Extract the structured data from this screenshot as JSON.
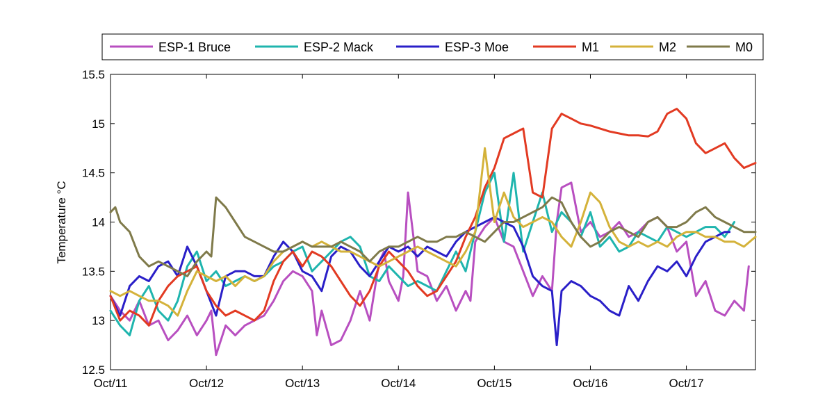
{
  "chart_data": {
    "type": "line",
    "title": "",
    "xlabel": "",
    "ylabel": "Temperature °C",
    "xlim": [
      0,
      6.72
    ],
    "ylim": [
      12.5,
      15.5
    ],
    "x_ticks": [
      {
        "value": 0,
        "label": "Oct/11"
      },
      {
        "value": 1,
        "label": "Oct/12"
      },
      {
        "value": 2,
        "label": "Oct/13"
      },
      {
        "value": 3,
        "label": "Oct/14"
      },
      {
        "value": 4,
        "label": "Oct/15"
      },
      {
        "value": 5,
        "label": "Oct/16"
      },
      {
        "value": 6,
        "label": "Oct/17"
      }
    ],
    "y_ticks": [
      12.5,
      13,
      13.5,
      14,
      14.5,
      15,
      15.5
    ],
    "y_tick_labels": [
      "12.5",
      "13",
      "13.5",
      "14",
      "14.5",
      "15",
      "15.5"
    ],
    "grid": false,
    "legend_position": "top",
    "series": [
      {
        "name": "ESP-1 Bruce",
        "color": "#B84FC0",
        "x": [
          0,
          0.1,
          0.2,
          0.3,
          0.4,
          0.5,
          0.6,
          0.7,
          0.8,
          0.9,
          1.0,
          1.05,
          1.1,
          1.2,
          1.3,
          1.4,
          1.5,
          1.6,
          1.7,
          1.8,
          1.9,
          2.0,
          2.1,
          2.15,
          2.2,
          2.3,
          2.4,
          2.5,
          2.6,
          2.7,
          2.8,
          2.85,
          2.9,
          3.0,
          3.05,
          3.1,
          3.2,
          3.3,
          3.4,
          3.5,
          3.6,
          3.7,
          3.75,
          3.8,
          3.9,
          4.0,
          4.1,
          4.2,
          4.3,
          4.4,
          4.5,
          4.6,
          4.65,
          4.7,
          4.8,
          4.9,
          5.0,
          5.1,
          5.2,
          5.3,
          5.4,
          5.5,
          5.6,
          5.7,
          5.8,
          5.9,
          6.0,
          6.1,
          6.2,
          6.3,
          6.4,
          6.5,
          6.6,
          6.65
        ],
        "y": [
          13.25,
          13.1,
          13.0,
          13.2,
          12.95,
          13.0,
          12.8,
          12.9,
          13.05,
          12.85,
          13.0,
          13.1,
          12.65,
          12.95,
          12.85,
          12.95,
          13.0,
          13.05,
          13.2,
          13.4,
          13.5,
          13.45,
          13.3,
          12.85,
          13.1,
          12.75,
          12.8,
          13.0,
          13.3,
          13.0,
          13.6,
          13.7,
          13.4,
          13.2,
          13.45,
          14.3,
          13.5,
          13.45,
          13.2,
          13.35,
          13.1,
          13.3,
          13.2,
          13.8,
          13.95,
          14.05,
          13.8,
          13.75,
          13.5,
          13.25,
          13.45,
          13.3,
          14.0,
          14.35,
          14.4,
          13.9,
          14.0,
          13.85,
          13.9,
          14.0,
          13.85,
          13.9,
          14.0,
          14.05,
          13.95,
          13.7,
          13.8,
          13.25,
          13.4,
          13.1,
          13.05,
          13.2,
          13.1,
          13.55
        ]
      },
      {
        "name": "ESP-2 Mack",
        "color": "#1FB5AE",
        "x": [
          0,
          0.1,
          0.2,
          0.3,
          0.4,
          0.5,
          0.6,
          0.7,
          0.8,
          0.9,
          1.0,
          1.1,
          1.2,
          1.3,
          1.4,
          1.5,
          1.6,
          1.7,
          1.8,
          1.9,
          2.0,
          2.1,
          2.2,
          2.3,
          2.4,
          2.5,
          2.6,
          2.7,
          2.8,
          2.9,
          3.0,
          3.1,
          3.2,
          3.3,
          3.4,
          3.5,
          3.6,
          3.7,
          3.8,
          3.9,
          4.0,
          4.1,
          4.2,
          4.3,
          4.4,
          4.5,
          4.6,
          4.7,
          4.8,
          4.9,
          5.0,
          5.1,
          5.2,
          5.3,
          5.4,
          5.5,
          5.6,
          5.7,
          5.8,
          5.9,
          6.0,
          6.1,
          6.2,
          6.3,
          6.4,
          6.5
        ],
        "y": [
          13.1,
          12.95,
          12.85,
          13.2,
          13.35,
          13.1,
          13.0,
          13.2,
          13.55,
          13.7,
          13.4,
          13.5,
          13.35,
          13.4,
          13.45,
          13.4,
          13.45,
          13.55,
          13.6,
          13.7,
          13.75,
          13.5,
          13.6,
          13.7,
          13.8,
          13.85,
          13.75,
          13.45,
          13.4,
          13.55,
          13.45,
          13.35,
          13.4,
          13.35,
          13.3,
          13.5,
          13.7,
          13.5,
          13.9,
          14.3,
          14.5,
          13.8,
          14.5,
          13.7,
          14.0,
          14.3,
          13.9,
          14.1,
          14.0,
          13.85,
          14.1,
          13.75,
          13.85,
          13.7,
          13.75,
          13.9,
          13.85,
          13.8,
          13.95,
          13.9,
          13.85,
          13.9,
          13.95,
          13.95,
          13.85,
          14.0
        ]
      },
      {
        "name": "ESP-3 Moe",
        "color": "#2A1FC8",
        "x": [
          0,
          0.1,
          0.2,
          0.3,
          0.4,
          0.5,
          0.6,
          0.7,
          0.8,
          0.9,
          1.0,
          1.1,
          1.2,
          1.3,
          1.4,
          1.5,
          1.6,
          1.7,
          1.8,
          1.9,
          2.0,
          2.1,
          2.2,
          2.3,
          2.4,
          2.5,
          2.6,
          2.7,
          2.8,
          2.9,
          3.0,
          3.1,
          3.2,
          3.3,
          3.4,
          3.5,
          3.6,
          3.7,
          3.8,
          3.9,
          4.0,
          4.1,
          4.2,
          4.3,
          4.4,
          4.5,
          4.6,
          4.65,
          4.7,
          4.8,
          4.9,
          5.0,
          5.1,
          5.2,
          5.3,
          5.4,
          5.5,
          5.6,
          5.7,
          5.8,
          5.9,
          6.0,
          6.1,
          6.2,
          6.3,
          6.4,
          6.45
        ],
        "y": [
          13.25,
          13.05,
          13.35,
          13.45,
          13.4,
          13.55,
          13.6,
          13.45,
          13.75,
          13.55,
          13.3,
          13.05,
          13.45,
          13.5,
          13.5,
          13.45,
          13.45,
          13.65,
          13.8,
          13.7,
          13.5,
          13.45,
          13.3,
          13.65,
          13.75,
          13.7,
          13.55,
          13.45,
          13.6,
          13.75,
          13.7,
          13.75,
          13.65,
          13.75,
          13.7,
          13.65,
          13.8,
          13.9,
          13.95,
          14.0,
          14.05,
          14.0,
          13.95,
          13.75,
          13.45,
          13.35,
          13.3,
          12.75,
          13.3,
          13.4,
          13.35,
          13.25,
          13.2,
          13.1,
          13.05,
          13.35,
          13.2,
          13.4,
          13.55,
          13.5,
          13.6,
          13.45,
          13.65,
          13.8,
          13.85,
          13.9,
          13.9
        ]
      },
      {
        "name": "M1",
        "color": "#E23A22",
        "x": [
          0,
          0.1,
          0.2,
          0.3,
          0.4,
          0.5,
          0.6,
          0.7,
          0.8,
          0.9,
          1.0,
          1.1,
          1.2,
          1.3,
          1.4,
          1.5,
          1.6,
          1.7,
          1.8,
          1.9,
          2.0,
          2.1,
          2.2,
          2.3,
          2.4,
          2.5,
          2.6,
          2.7,
          2.8,
          2.9,
          3.0,
          3.1,
          3.2,
          3.3,
          3.4,
          3.5,
          3.6,
          3.7,
          3.8,
          3.9,
          4.0,
          4.1,
          4.2,
          4.3,
          4.4,
          4.5,
          4.6,
          4.7,
          4.8,
          4.9,
          5.0,
          5.1,
          5.2,
          5.3,
          5.4,
          5.5,
          5.6,
          5.7,
          5.8,
          5.9,
          6.0,
          6.1,
          6.2,
          6.3,
          6.4,
          6.5,
          6.6,
          6.72
        ],
        "y": [
          13.25,
          13.0,
          13.1,
          13.05,
          12.95,
          13.2,
          13.35,
          13.45,
          13.5,
          13.55,
          13.3,
          13.15,
          13.05,
          13.1,
          13.05,
          13.0,
          13.1,
          13.4,
          13.6,
          13.7,
          13.55,
          13.7,
          13.65,
          13.55,
          13.4,
          13.25,
          13.15,
          13.3,
          13.55,
          13.7,
          13.6,
          13.5,
          13.35,
          13.25,
          13.3,
          13.45,
          13.6,
          13.85,
          14.05,
          14.35,
          14.55,
          14.85,
          14.9,
          14.95,
          14.3,
          14.25,
          14.95,
          15.1,
          15.05,
          15.0,
          14.98,
          14.95,
          14.92,
          14.9,
          14.88,
          14.88,
          14.87,
          14.92,
          15.1,
          15.15,
          15.05,
          14.8,
          14.7,
          14.75,
          14.8,
          14.65,
          14.55,
          14.6
        ]
      },
      {
        "name": "M2",
        "color": "#D4B23A",
        "x": [
          0,
          0.1,
          0.2,
          0.3,
          0.4,
          0.5,
          0.6,
          0.7,
          0.8,
          0.9,
          1.0,
          1.1,
          1.2,
          1.3,
          1.4,
          1.5,
          1.6,
          1.7,
          1.8,
          1.9,
          2.0,
          2.1,
          2.2,
          2.3,
          2.4,
          2.5,
          2.6,
          2.7,
          2.8,
          2.9,
          3.0,
          3.1,
          3.2,
          3.3,
          3.4,
          3.5,
          3.6,
          3.7,
          3.8,
          3.9,
          4.0,
          4.1,
          4.2,
          4.3,
          4.4,
          4.5,
          4.6,
          4.7,
          4.8,
          4.9,
          5.0,
          5.1,
          5.2,
          5.3,
          5.4,
          5.5,
          5.6,
          5.7,
          5.8,
          5.9,
          6.0,
          6.1,
          6.2,
          6.3,
          6.4,
          6.5,
          6.6,
          6.72
        ],
        "y": [
          13.3,
          13.25,
          13.3,
          13.25,
          13.2,
          13.2,
          13.15,
          13.05,
          13.3,
          13.5,
          13.45,
          13.4,
          13.45,
          13.35,
          13.45,
          13.4,
          13.45,
          13.6,
          13.7,
          13.75,
          13.8,
          13.75,
          13.8,
          13.75,
          13.7,
          13.7,
          13.65,
          13.6,
          13.55,
          13.6,
          13.65,
          13.7,
          13.75,
          13.7,
          13.65,
          13.6,
          13.55,
          13.7,
          13.9,
          14.75,
          14.0,
          14.3,
          14.05,
          13.95,
          14.0,
          14.05,
          14.0,
          13.85,
          13.75,
          14.0,
          14.3,
          14.2,
          13.95,
          13.8,
          13.75,
          13.8,
          13.75,
          13.8,
          13.75,
          13.85,
          13.9,
          13.9,
          13.85,
          13.85,
          13.8,
          13.8,
          13.75,
          13.85
        ]
      },
      {
        "name": "M0",
        "color": "#7F7A4A",
        "x": [
          0,
          0.05,
          0.1,
          0.2,
          0.3,
          0.4,
          0.5,
          0.6,
          0.7,
          0.8,
          0.9,
          1.0,
          1.05,
          1.1,
          1.2,
          1.3,
          1.4,
          1.5,
          1.6,
          1.7,
          1.8,
          1.9,
          2.0,
          2.1,
          2.2,
          2.3,
          2.4,
          2.5,
          2.6,
          2.7,
          2.8,
          2.9,
          3.0,
          3.1,
          3.2,
          3.3,
          3.4,
          3.5,
          3.6,
          3.7,
          3.8,
          3.9,
          4.0,
          4.1,
          4.2,
          4.3,
          4.4,
          4.5,
          4.6,
          4.7,
          4.8,
          4.9,
          5.0,
          5.1,
          5.2,
          5.3,
          5.4,
          5.5,
          5.6,
          5.7,
          5.8,
          5.9,
          6.0,
          6.1,
          6.2,
          6.3,
          6.4,
          6.5,
          6.6,
          6.72
        ],
        "y": [
          14.1,
          14.15,
          14.0,
          13.9,
          13.65,
          13.55,
          13.6,
          13.55,
          13.5,
          13.45,
          13.6,
          13.7,
          13.65,
          14.25,
          14.15,
          14.0,
          13.85,
          13.8,
          13.75,
          13.7,
          13.7,
          13.75,
          13.8,
          13.75,
          13.75,
          13.75,
          13.8,
          13.75,
          13.7,
          13.6,
          13.7,
          13.75,
          13.75,
          13.8,
          13.85,
          13.8,
          13.8,
          13.85,
          13.85,
          13.9,
          13.85,
          13.8,
          13.9,
          14.0,
          14.0,
          14.05,
          14.1,
          14.15,
          14.25,
          14.2,
          14.0,
          13.85,
          13.75,
          13.8,
          13.9,
          13.95,
          13.9,
          13.85,
          14.0,
          14.05,
          13.95,
          13.95,
          14.0,
          14.1,
          14.15,
          14.05,
          14.0,
          13.95,
          13.9,
          13.9
        ]
      }
    ]
  }
}
